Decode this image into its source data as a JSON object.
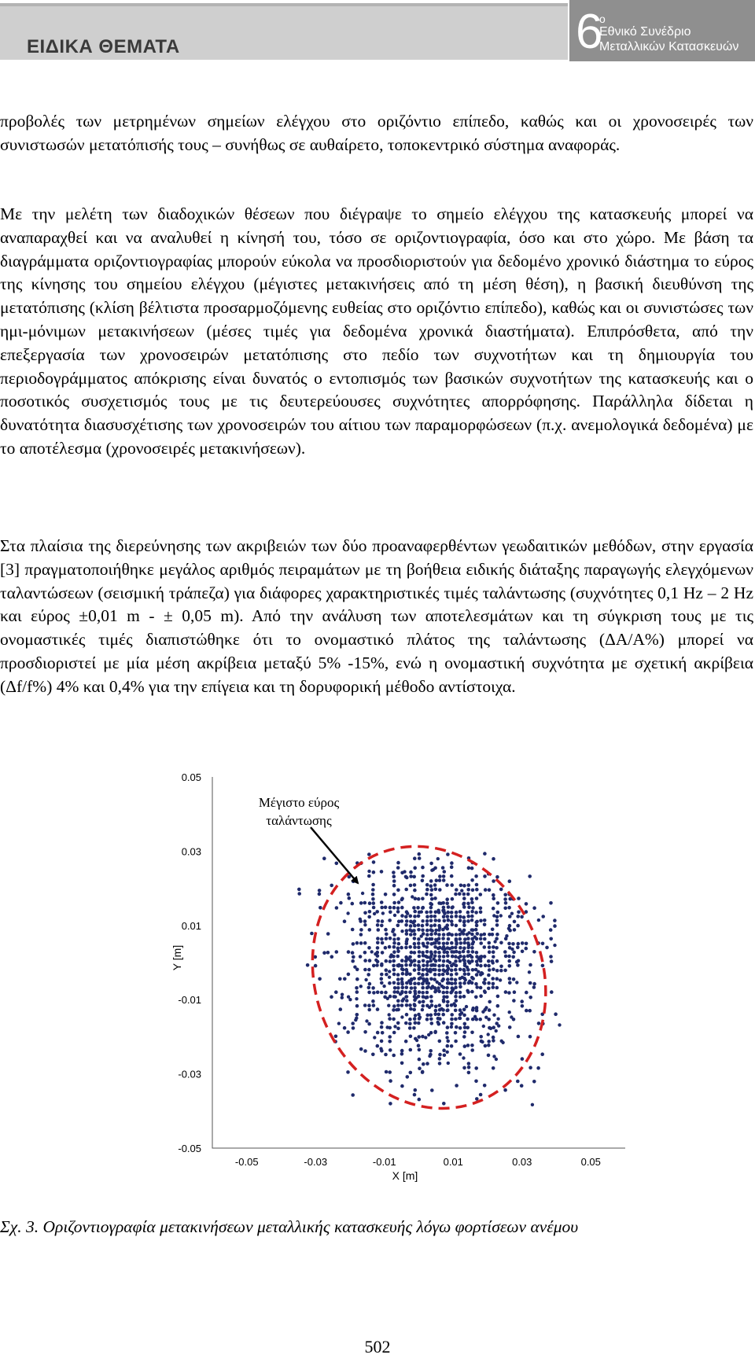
{
  "header": {
    "section_title": "ΕΙΔΙΚΑ ΘΕΜΑΤΑ",
    "conference_number": "6",
    "conference_superscript": "ο",
    "conference_line1": "Εθνικό Συνέδριο",
    "conference_line2": "Μεταλλικών Κατασκευών"
  },
  "body": {
    "paragraph1": "προβολές των μετρημένων σημείων ελέγχου στο οριζόντιο επίπεδο, καθώς και οι χρονοσειρές των συνιστωσών μετατόπισής τους – συνήθως σε αυθαίρετο, τοποκεντρικό σύστημα αναφοράς.",
    "paragraph2": "Με την μελέτη των διαδοχικών θέσεων που διέγραψε το σημείο ελέγχου της κατασκευής μπορεί να αναπαραχθεί και να αναλυθεί η κίνησή του, τόσο σε οριζοντιογραφία, όσο και στο χώρο. Με βάση τα διαγράμματα οριζοντιογραφίας μπορούν εύκολα να προσδιοριστούν για δεδομένο χρονικό διάστημα το εύρος της κίνησης του σημείου ελέγχου (μέγιστες μετακινήσεις από τη μέση θέση), η βασική διευθύνση της μετατόπισης (κλίση βέλτιστα προσαρμοζόμενης ευθείας στο οριζόντιο επίπεδο), καθώς και οι συνιστώσες των ημι-μόνιμων μετακινήσεων (μέσες τιμές για δεδομένα χρονικά διαστήματα). Επιπρόσθετα, από την επεξεργασία των χρονοσειρών μετατόπισης στο πεδίο των συχνοτήτων και τη δημιουργία του περιοδογράμματος απόκρισης είναι δυνατός ο εντοπισμός των βασικών συχνοτήτων της κατασκευής και ο ποσοτικός συσχετισμός τους με τις δευτερεύουσες συχνότητες απορρόφησης. Παράλληλα δίδεται η δυνατότητα διασυσχέτισης των χρονοσειρών του αίτιου των παραμορφώσεων (π.χ. ανεμολογικά δεδομένα) με το αποτέλεσμα (χρονοσειρές μετακινήσεων).",
    "paragraph3": "Στα πλαίσια της διερεύνησης των ακριβειών των δύο προαναφερθέντων γεωδαιτικών μεθόδων, στην εργασία [3] πραγματοποιήθηκε μεγάλος αριθμός πειραμάτων με τη βοήθεια ειδικής διάταξης παραγωγής ελεγχόμενων ταλαντώσεων (σεισμική τράπεζα) για διάφορες χαρακτηριστικές τιμές ταλάντωσης (συχνότητες 0,1 Hz – 2 Hz και εύρος ±0,01 m - ± 0,05 m). Από την ανάλυση των αποτελεσμάτων και τη σύγκριση τους με τις ονομαστικές τιμές διαπιστώθηκε ότι το ονομαστικό πλάτος της ταλάντωσης (ΔA/A%) μπορεί να προσδιοριστεί με μία μέση ακρίβεια μεταξύ 5% -15%, ενώ η ονομαστική συχνότητα με σχετική ακρίβεια (Δf/f%) 4% και 0,4% για την επίγεια και τη δορυφορική μέθοδο αντίστοιχα."
  },
  "chart_data": {
    "type": "scatter",
    "xlabel": "X [m]",
    "ylabel": "Y [m]",
    "xlim": [
      -0.06,
      0.06
    ],
    "ylim": [
      -0.05,
      0.05
    ],
    "x_ticks": [
      "-0.05",
      "-0.03",
      "-0.01",
      "0.01",
      "0.03",
      "0.05"
    ],
    "y_ticks": [
      "0.05",
      "0.03",
      "0.01",
      "-0.01",
      "-0.03",
      "-0.05"
    ],
    "grid": false,
    "point_color": "#1f2a6b",
    "ellipse_color": "#d42020",
    "annotation": {
      "line1": "Μέγιστο εύρος",
      "line2": "ταλάντωσης"
    },
    "points_description": "dense cloud of positions centered near (0.005, 0.002), spanning roughly x -0.035..0.04, y -0.043..0.03",
    "ellipse": {
      "cx": 0.003,
      "cy": -0.004,
      "rx": 0.033,
      "ry": 0.036
    }
  },
  "figure": {
    "caption": "Σχ. 3. Οριζοντιογραφία μετακινήσεων μεταλλικής κατασκευής λόγω φορτίσεων ανέμου"
  },
  "page": {
    "number": "502"
  }
}
